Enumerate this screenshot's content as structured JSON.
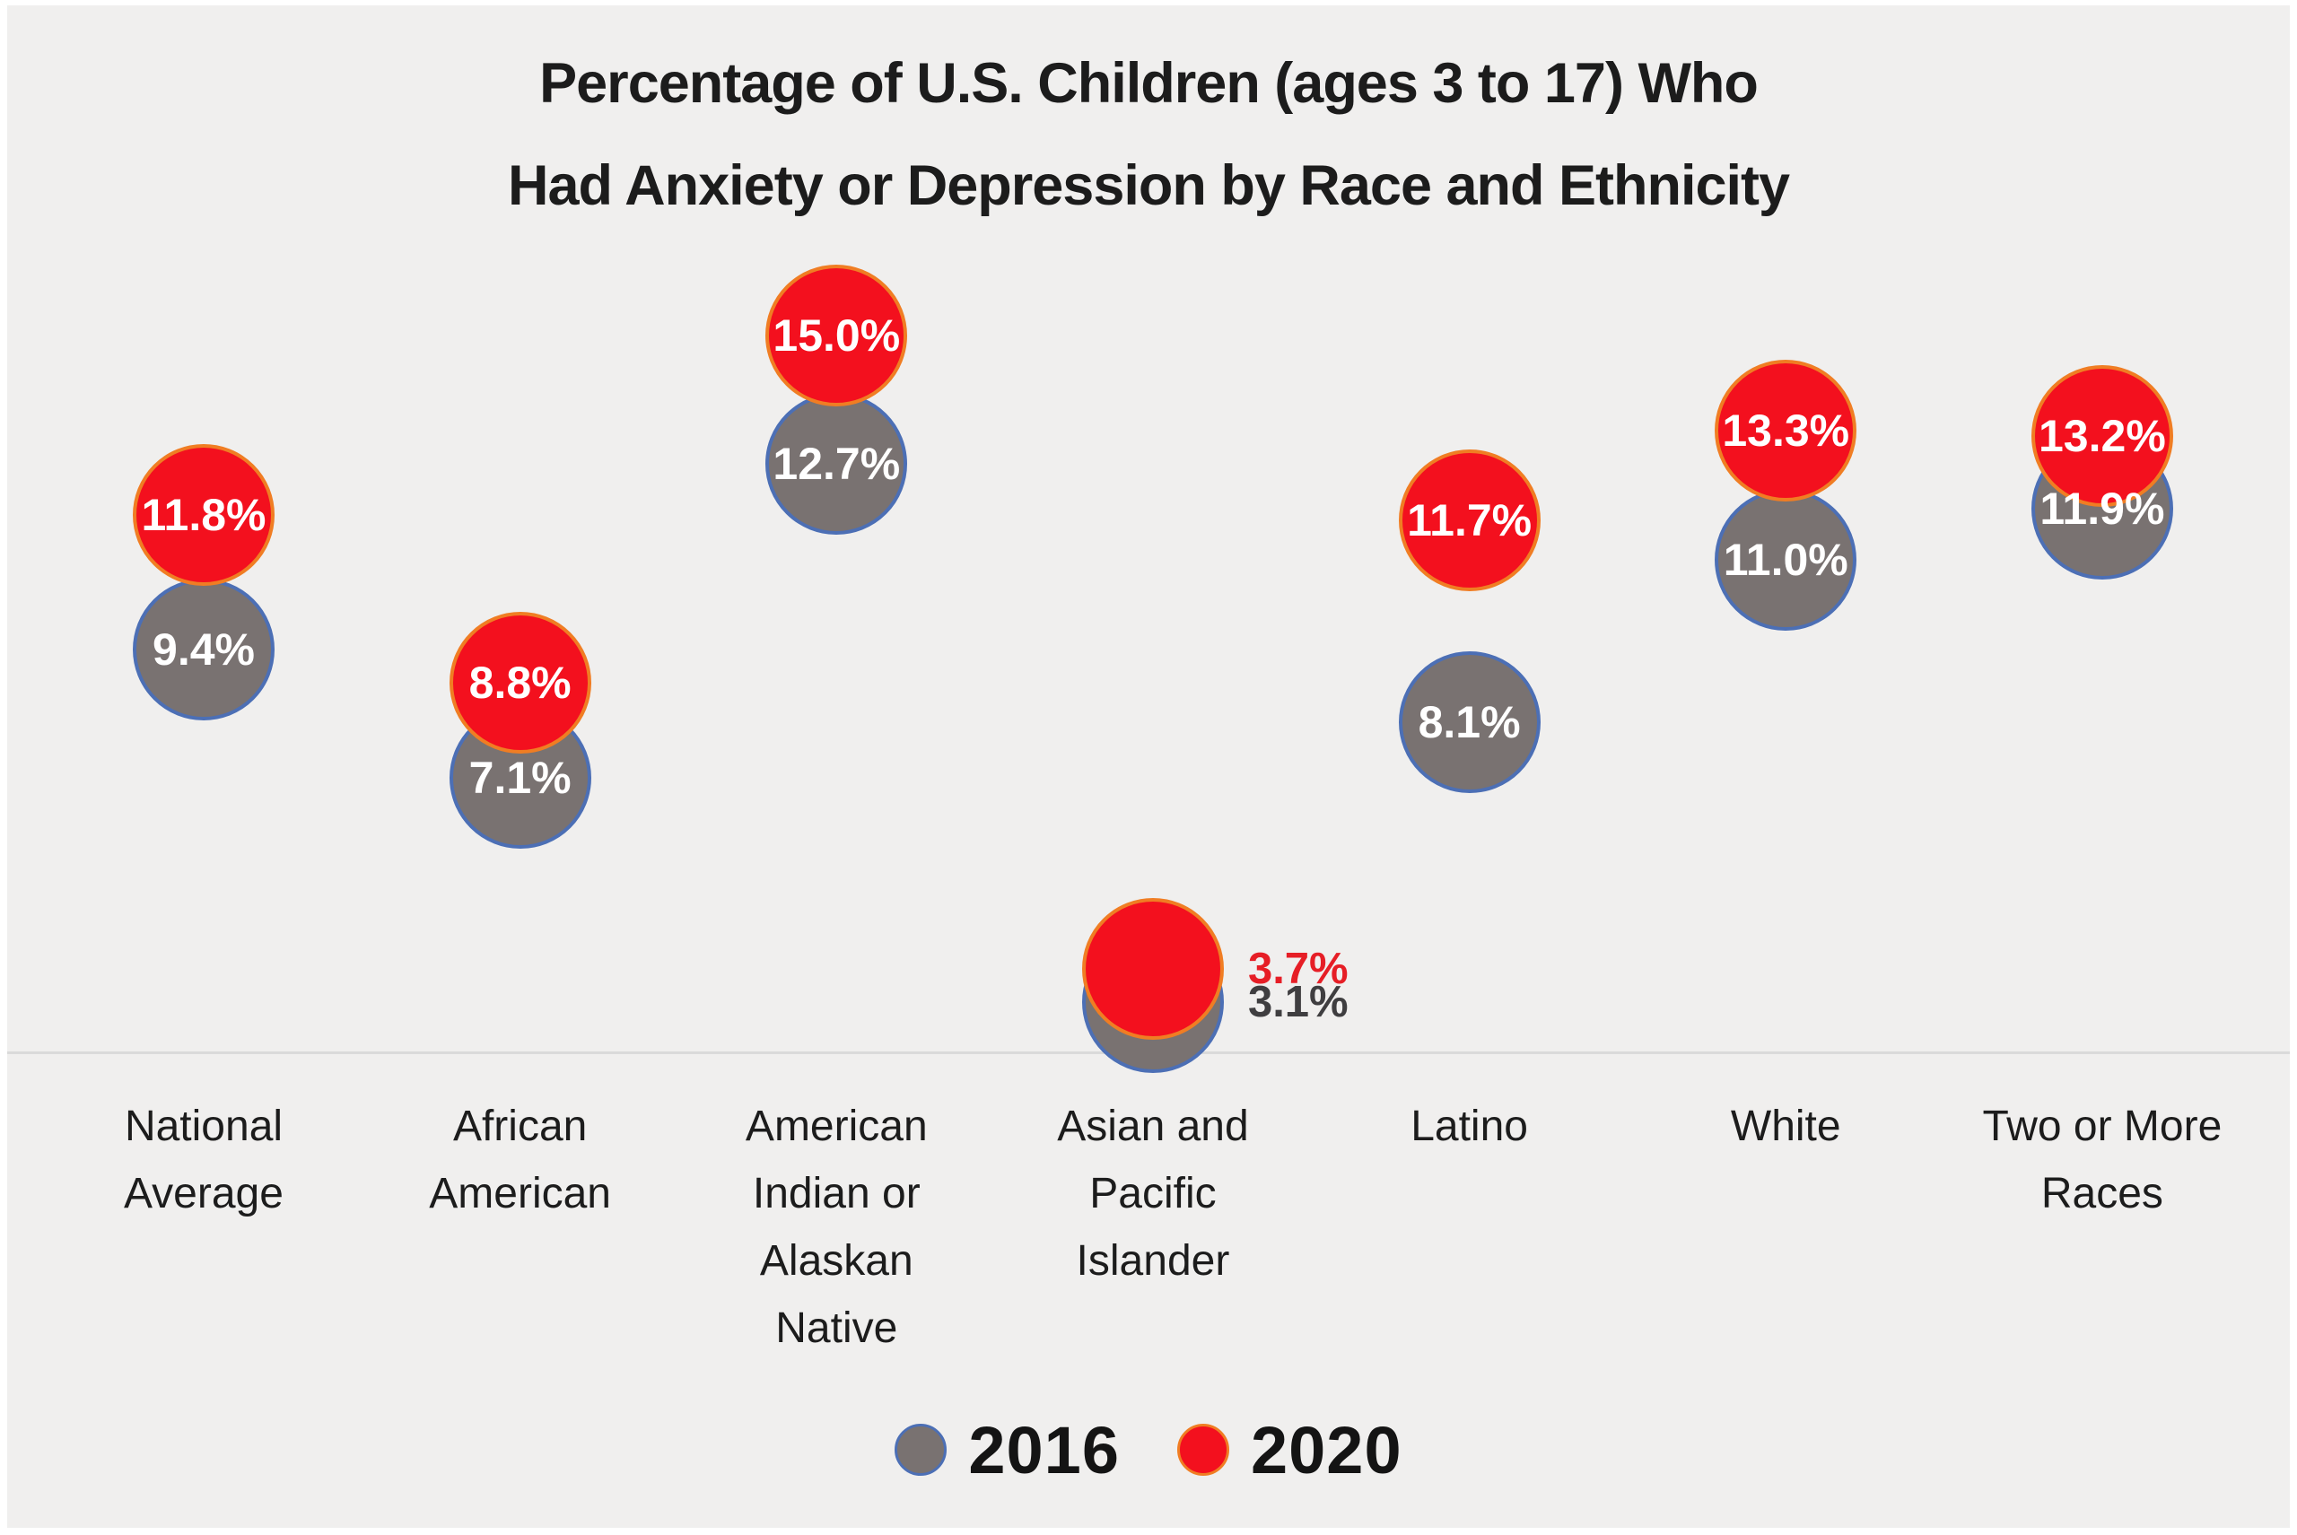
{
  "title_lines": [
    "Percentage of U.S. Children (ages 3 to 17) Who",
    "Had Anxiety or Depression by Race and Ethnicity"
  ],
  "colors": {
    "background": "#f0efee",
    "frame": "#ffffff",
    "red": "#f3101e",
    "red_stroke": "#f07d23",
    "gray": "#797271",
    "gray_stroke": "#4c6fb5",
    "title_text": "#1c1c1c",
    "category_text": "#1c1c1c",
    "value_text": "#ffffff",
    "baseline": "#dadada",
    "outside_red_text": "#e61e26",
    "outside_gray_text": "#3f3e40",
    "legend_text": "#141414"
  },
  "legend": {
    "items": [
      {
        "label": "2016",
        "color_key": "gray"
      },
      {
        "label": "2020",
        "color_key": "red"
      }
    ]
  },
  "chart_data": {
    "type": "scatter",
    "mark": "bubble-dot",
    "unit": "%",
    "title": "Percentage of U.S. Children (ages 3 to 17) Who Had Anxiety or Depression by Race and Ethnicity",
    "legend_position": "bottom",
    "grid": false,
    "baseline_value": 0,
    "value_format": "one-decimal-percent",
    "series_names": [
      "2016",
      "2020"
    ],
    "categories": [
      {
        "label": "National Average",
        "label_lines": [
          "National",
          "Average"
        ],
        "v2016": 9.4,
        "v2020": 11.8,
        "value_labels": "inside"
      },
      {
        "label": "African American",
        "label_lines": [
          "African",
          "American"
        ],
        "v2016": 7.1,
        "v2020": 8.8,
        "value_labels": "inside"
      },
      {
        "label": "American Indian or Alaskan Native",
        "label_lines": [
          "American",
          "Indian or",
          "Alaskan",
          "Native"
        ],
        "v2016": 12.7,
        "v2020": 15.0,
        "value_labels": "inside"
      },
      {
        "label": "Asian and Pacific Islander",
        "label_lines": [
          "Asian and",
          "Pacific",
          "Islander"
        ],
        "v2016": 3.1,
        "v2020": 3.7,
        "value_labels": "outside-right"
      },
      {
        "label": "Latino",
        "label_lines": [
          "Latino"
        ],
        "v2016": 8.1,
        "v2020": 11.7,
        "value_labels": "inside"
      },
      {
        "label": "White",
        "label_lines": [
          "White"
        ],
        "v2016": 11.0,
        "v2020": 13.3,
        "value_labels": "inside"
      },
      {
        "label": "Two or More Races",
        "label_lines": [
          "Two or More",
          "Races"
        ],
        "v2016": 11.9,
        "v2020": 13.2,
        "value_labels": "inside"
      }
    ],
    "series": [
      {
        "name": "2016",
        "values": [
          9.4,
          7.1,
          12.7,
          3.1,
          8.1,
          11.0,
          11.9
        ]
      },
      {
        "name": "2020",
        "values": [
          11.8,
          8.8,
          15.0,
          3.7,
          11.7,
          13.3,
          13.2
        ]
      }
    ]
  }
}
